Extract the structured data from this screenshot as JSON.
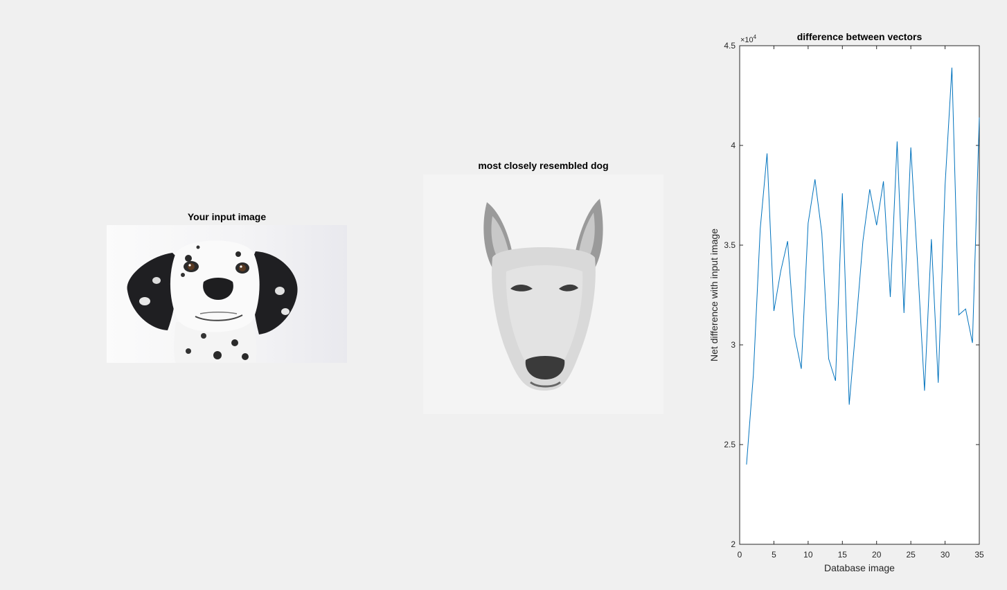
{
  "panels": {
    "input_title": "Your input image",
    "match_title": "most closely resembled dog"
  },
  "chart_data": {
    "type": "line",
    "title": "difference between vectors",
    "xlabel": "Database image",
    "ylabel": "Net difference with input image",
    "y_exponent_label": "×10",
    "y_exponent_power": "4",
    "xlim": [
      0,
      35
    ],
    "ylim": [
      2,
      4.5
    ],
    "x_ticks": [
      "0",
      "5",
      "10",
      "15",
      "20",
      "25",
      "30",
      "35"
    ],
    "y_ticks": [
      "2",
      "2.5",
      "3",
      "3.5",
      "4",
      "4.5"
    ],
    "line_color": "#0072bd",
    "x": [
      1,
      2,
      3,
      4,
      5,
      6,
      7,
      8,
      9,
      10,
      11,
      12,
      13,
      14,
      15,
      16,
      17,
      18,
      19,
      20,
      21,
      22,
      23,
      24,
      25,
      26,
      27,
      28,
      29,
      30,
      31,
      32,
      33,
      34,
      35
    ],
    "values": [
      2.4,
      2.85,
      3.58,
      3.96,
      3.17,
      3.37,
      3.52,
      3.05,
      2.88,
      3.61,
      3.83,
      3.56,
      2.93,
      2.82,
      3.76,
      2.7,
      3.1,
      3.52,
      3.78,
      3.6,
      3.82,
      3.24,
      4.02,
      3.16,
      3.99,
      3.4,
      2.77,
      3.53,
      2.81,
      3.8,
      4.39,
      3.15,
      3.18,
      3.01,
      4.14
    ],
    "grid": false
  }
}
